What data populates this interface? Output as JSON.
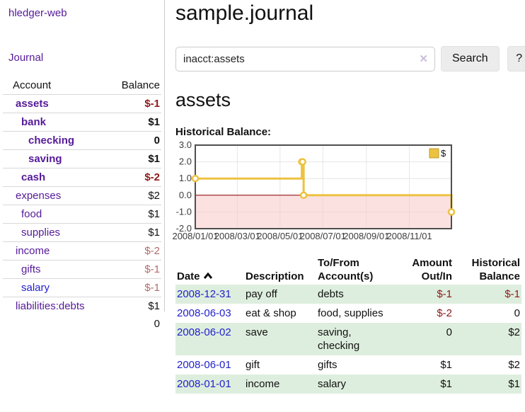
{
  "app": {
    "brand": "hledger-web",
    "journal_label": "Journal"
  },
  "header": {
    "title": "sample.journal"
  },
  "search": {
    "value": "inacct:assets",
    "clear_icon": "✕",
    "search_label": "Search",
    "help_label": "?"
  },
  "account_page": {
    "heading": "assets"
  },
  "sidebar": {
    "table_headers": {
      "account": "Account",
      "balance": "Balance"
    },
    "accounts": [
      {
        "name": "assets",
        "balance": "$-1",
        "indent": 1,
        "bold": true,
        "color": "purple",
        "value_class": "neg-dark"
      },
      {
        "name": "bank",
        "balance": "$1",
        "indent": 2,
        "bold": true,
        "color": "purple",
        "value_class": ""
      },
      {
        "name": "checking",
        "balance": "0",
        "indent": 3,
        "bold": true,
        "color": "purple",
        "value_class": ""
      },
      {
        "name": "saving",
        "balance": "$1",
        "indent": 3,
        "bold": true,
        "color": "purple",
        "value_class": ""
      },
      {
        "name": "cash",
        "balance": "$-2",
        "indent": 2,
        "bold": true,
        "color": "purple",
        "value_class": "neg-dark"
      },
      {
        "name": "expenses",
        "balance": "$2",
        "indent": 1,
        "bold": false,
        "color": "purple",
        "value_class": ""
      },
      {
        "name": "food",
        "balance": "$1",
        "indent": 2,
        "bold": false,
        "color": "purple",
        "value_class": ""
      },
      {
        "name": "supplies",
        "balance": "$1",
        "indent": 2,
        "bold": false,
        "color": "purple",
        "value_class": ""
      },
      {
        "name": "income",
        "balance": "$-2",
        "indent": 1,
        "bold": false,
        "color": "purple",
        "value_class": "neg-muted"
      },
      {
        "name": "gifts",
        "balance": "$-1",
        "indent": 2,
        "bold": false,
        "color": "purple",
        "value_class": "neg-muted"
      },
      {
        "name": "salary",
        "balance": "$-1",
        "indent": 2,
        "bold": false,
        "color": "blue",
        "value_class": "neg-muted"
      },
      {
        "name": "liabilities:debts",
        "balance": "$1",
        "indent": 1,
        "bold": false,
        "color": "purple",
        "value_class": ""
      }
    ],
    "total": "0"
  },
  "chart_data": {
    "type": "line",
    "title": "Historical Balance:",
    "step": true,
    "series": [
      {
        "name": "$",
        "color": "#edc240",
        "points": [
          {
            "date": "2008-01-01",
            "x": 0.0,
            "y": 1
          },
          {
            "date": "2008-06-01",
            "x": 0.416,
            "y": 2
          },
          {
            "date": "2008-06-02",
            "x": 0.419,
            "y": 2
          },
          {
            "date": "2008-06-03",
            "x": 0.423,
            "y": 0
          },
          {
            "date": "2008-12-31",
            "x": 1.0,
            "y": -1
          }
        ]
      }
    ],
    "x_ticks": [
      {
        "label": "2008/01/01",
        "x": 0.0
      },
      {
        "label": "2008/03/01",
        "x": 0.164
      },
      {
        "label": "2008/05/01",
        "x": 0.331
      },
      {
        "label": "2008/07/01",
        "x": 0.498
      },
      {
        "label": "2008/09/01",
        "x": 0.668
      },
      {
        "label": "2008/11/01",
        "x": 0.836
      }
    ],
    "y_ticks": [
      3,
      2,
      1,
      0,
      -1,
      -2
    ],
    "ylim": [
      -2,
      3
    ],
    "grid": true,
    "legend_position": "top-right",
    "grid_color": "#e6e6e6",
    "border_color": "#4f4f4f",
    "negative_region_color": "#f9c8c8",
    "zero_line_color": "#8b0000",
    "legend": {
      "label": "$",
      "swatch_color": "#edc240",
      "swatch_border": "#bf9b2f"
    }
  },
  "register": {
    "columns": {
      "date": "Date",
      "description": "Description",
      "to_from": "To/From Account(s)",
      "amount": "Amount Out/In",
      "balance": "Historical Balance"
    },
    "rows": [
      {
        "date": "2008-12-31",
        "description": "pay off",
        "to_from": "debts",
        "amount": "$-1",
        "amount_neg": true,
        "balance": "$-1",
        "balance_neg": true,
        "shaded": true
      },
      {
        "date": "2008-06-03",
        "description": "eat & shop",
        "to_from": "food, supplies",
        "amount": "$-2",
        "amount_neg": true,
        "balance": "0",
        "balance_neg": false,
        "shaded": false
      },
      {
        "date": "2008-06-02",
        "description": "save",
        "to_from": "saving, checking",
        "amount": "0",
        "amount_neg": false,
        "balance": "$2",
        "balance_neg": false,
        "shaded": true
      },
      {
        "date": "2008-06-01",
        "description": "gift",
        "to_from": "gifts",
        "amount": "$1",
        "amount_neg": false,
        "balance": "$2",
        "balance_neg": false,
        "shaded": false
      },
      {
        "date": "2008-01-01",
        "description": "income",
        "to_from": "salary",
        "amount": "$1",
        "amount_neg": false,
        "balance": "$1",
        "balance_neg": false,
        "shaded": true
      }
    ]
  },
  "colors": {
    "link_purple": "#551a99",
    "link_blue": "#2222cc",
    "negative_dark": "#8b1a1a",
    "negative_muted": "#b36b6b",
    "row_highlight_green": "#deeede",
    "chart_series_gold": "#edc240"
  }
}
